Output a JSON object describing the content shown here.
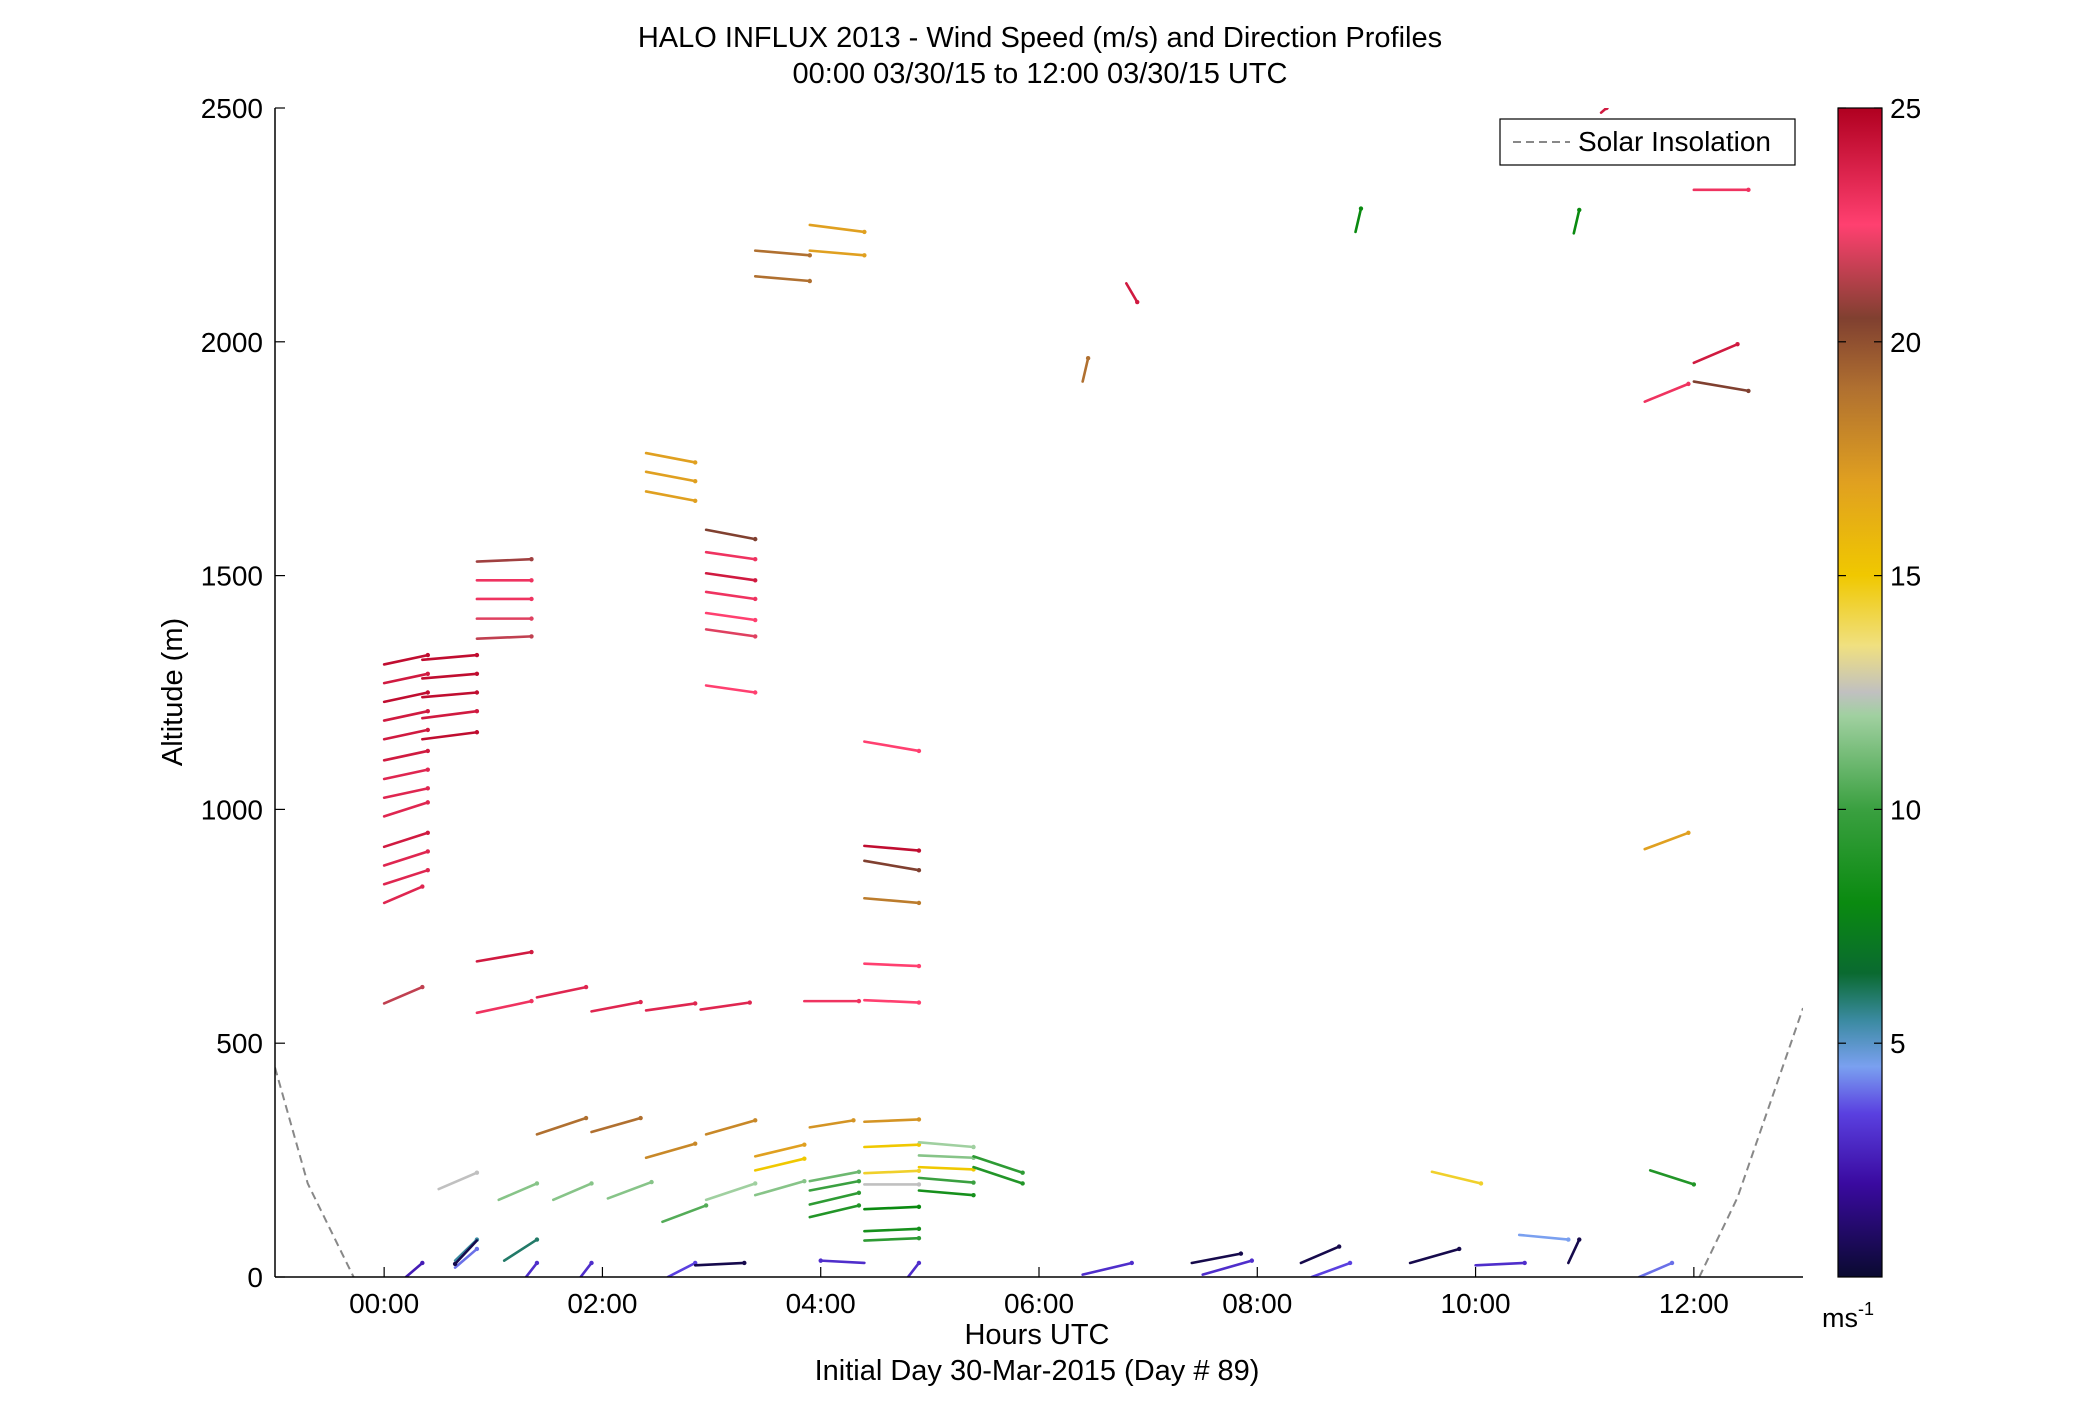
{
  "chart_data": {
    "type": "wind-profile",
    "title_line1": "HALO INFLUX 2013 - Wind Speed (m/s) and Direction Profiles",
    "title_line2": "00:00 03/30/15 to 12:00 03/30/15  UTC",
    "xlabel": "Hours UTC",
    "xlabel2": "Initial Day 30-Mar-2015 (Day # 89)",
    "ylabel": "Altitude (m)",
    "xlim": [
      -1.0,
      13.0
    ],
    "ylim": [
      0,
      2500
    ],
    "x_ticks": [
      0,
      2,
      4,
      6,
      8,
      10,
      12
    ],
    "x_tick_labels": [
      "00:00",
      "02:00",
      "04:00",
      "06:00",
      "08:00",
      "10:00",
      "12:00"
    ],
    "y_ticks": [
      0,
      500,
      1000,
      1500,
      2000,
      2500
    ],
    "y_tick_labels": [
      "0",
      "500",
      "1000",
      "1500",
      "2000",
      "2500"
    ],
    "legend": {
      "label": "Solar Insolation",
      "placement": "top-right",
      "line_color": "#888888"
    },
    "colorbar": {
      "min": 0,
      "max": 25,
      "ticks": [
        5,
        10,
        15,
        20,
        25
      ],
      "tick_labels": [
        "5",
        "10",
        "15",
        "20",
        "25"
      ],
      "unit_label": "ms",
      "unit_exp": "-1",
      "stops": [
        [
          0,
          "#0a0a30"
        ],
        [
          2,
          "#3a0aa0"
        ],
        [
          3.5,
          "#5a40e0"
        ],
        [
          4.5,
          "#7aa0f0"
        ],
        [
          5.5,
          "#3a8aa0"
        ],
        [
          6.5,
          "#0a6a30"
        ],
        [
          8,
          "#0a8a10"
        ],
        [
          10,
          "#3aa040"
        ],
        [
          12,
          "#a0d0a0"
        ],
        [
          12.5,
          "#c0c0c0"
        ],
        [
          13.5,
          "#f0e080"
        ],
        [
          15,
          "#f0c800"
        ],
        [
          17,
          "#e0a020"
        ],
        [
          19,
          "#b07030"
        ],
        [
          20.5,
          "#804030"
        ],
        [
          22.5,
          "#ff4070"
        ],
        [
          25,
          "#b00020"
        ]
      ]
    },
    "solar_insolation": [
      [
        [
          -1.0,
          448
        ],
        [
          -0.7,
          200
        ],
        [
          -0.28,
          0
        ]
      ],
      [
        [
          12.05,
          0
        ],
        [
          12.4,
          170
        ],
        [
          13.0,
          575
        ]
      ]
    ],
    "wind_barbs": [
      {
        "t": 0.0,
        "alt": 1310,
        "dx": 0.4,
        "dy": 20,
        "speed": 24.5
      },
      {
        "t": 0.0,
        "alt": 1270,
        "dx": 0.4,
        "dy": 20,
        "speed": 24.0
      },
      {
        "t": 0.0,
        "alt": 1230,
        "dx": 0.4,
        "dy": 20,
        "speed": 24.5
      },
      {
        "t": 0.0,
        "alt": 1190,
        "dx": 0.4,
        "dy": 20,
        "speed": 24.0
      },
      {
        "t": 0.0,
        "alt": 1150,
        "dx": 0.4,
        "dy": 20,
        "speed": 24.0
      },
      {
        "t": 0.0,
        "alt": 1105,
        "dx": 0.4,
        "dy": 20,
        "speed": 24.0
      },
      {
        "t": 0.0,
        "alt": 1065,
        "dx": 0.4,
        "dy": 20,
        "speed": 23.5
      },
      {
        "t": 0.0,
        "alt": 1025,
        "dx": 0.4,
        "dy": 20,
        "speed": 23.5
      },
      {
        "t": 0.0,
        "alt": 985,
        "dx": 0.4,
        "dy": 30,
        "speed": 23.5
      },
      {
        "t": 0.0,
        "alt": 920,
        "dx": 0.4,
        "dy": 30,
        "speed": 24.0
      },
      {
        "t": 0.0,
        "alt": 880,
        "dx": 0.4,
        "dy": 30,
        "speed": 23.5
      },
      {
        "t": 0.0,
        "alt": 840,
        "dx": 0.4,
        "dy": 30,
        "speed": 23.5
      },
      {
        "t": 0.0,
        "alt": 800,
        "dx": 0.35,
        "dy": 35,
        "speed": 23.5
      },
      {
        "t": 0.0,
        "alt": 585,
        "dx": 0.35,
        "dy": 35,
        "speed": 21.5
      },
      {
        "t": 0.35,
        "alt": 1320,
        "dx": 0.5,
        "dy": 10,
        "speed": 24.5
      },
      {
        "t": 0.35,
        "alt": 1280,
        "dx": 0.5,
        "dy": 10,
        "speed": 24.5
      },
      {
        "t": 0.35,
        "alt": 1240,
        "dx": 0.5,
        "dy": 10,
        "speed": 24.5
      },
      {
        "t": 0.35,
        "alt": 1195,
        "dx": 0.5,
        "dy": 15,
        "speed": 24.0
      },
      {
        "t": 0.35,
        "alt": 1150,
        "dx": 0.5,
        "dy": 15,
        "speed": 24.5
      },
      {
        "t": 0.85,
        "alt": 1530,
        "dx": 0.5,
        "dy": 5,
        "speed": 21.0
      },
      {
        "t": 0.85,
        "alt": 1490,
        "dx": 0.5,
        "dy": 0,
        "speed": 23.0
      },
      {
        "t": 0.85,
        "alt": 1450,
        "dx": 0.5,
        "dy": 0,
        "speed": 23.0
      },
      {
        "t": 0.85,
        "alt": 1408,
        "dx": 0.5,
        "dy": 0,
        "speed": 22.0
      },
      {
        "t": 0.85,
        "alt": 1365,
        "dx": 0.5,
        "dy": 5,
        "speed": 21.5
      },
      {
        "t": 0.85,
        "alt": 675,
        "dx": 0.5,
        "dy": 20,
        "speed": 24.0
      },
      {
        "t": 0.85,
        "alt": 565,
        "dx": 0.5,
        "dy": 25,
        "speed": 23.0
      },
      {
        "t": 1.4,
        "alt": 598,
        "dx": 0.45,
        "dy": 22,
        "speed": 23.5
      },
      {
        "t": 1.9,
        "alt": 568,
        "dx": 0.45,
        "dy": 20,
        "speed": 23.5
      },
      {
        "t": 2.4,
        "alt": 570,
        "dx": 0.45,
        "dy": 15,
        "speed": 23.5
      },
      {
        "t": 2.9,
        "alt": 572,
        "dx": 0.45,
        "dy": 15,
        "speed": 23.5
      },
      {
        "t": 2.95,
        "alt": 1598,
        "dx": 0.45,
        "dy": -20,
        "speed": 20.5
      },
      {
        "t": 2.95,
        "alt": 1550,
        "dx": 0.45,
        "dy": -15,
        "speed": 23.0
      },
      {
        "t": 2.95,
        "alt": 1505,
        "dx": 0.45,
        "dy": -15,
        "speed": 24.0
      },
      {
        "t": 2.95,
        "alt": 1465,
        "dx": 0.45,
        "dy": -15,
        "speed": 23.0
      },
      {
        "t": 2.95,
        "alt": 1420,
        "dx": 0.45,
        "dy": -15,
        "speed": 22.5
      },
      {
        "t": 2.95,
        "alt": 1385,
        "dx": 0.45,
        "dy": -15,
        "speed": 22.0
      },
      {
        "t": 2.95,
        "alt": 1265,
        "dx": 0.45,
        "dy": -15,
        "speed": 22.5
      },
      {
        "t": 2.4,
        "alt": 1762,
        "dx": 0.45,
        "dy": -20,
        "speed": 17.0
      },
      {
        "t": 2.4,
        "alt": 1722,
        "dx": 0.45,
        "dy": -20,
        "speed": 17.0
      },
      {
        "t": 2.4,
        "alt": 1680,
        "dx": 0.45,
        "dy": -20,
        "speed": 17.0
      },
      {
        "t": 3.4,
        "alt": 2195,
        "dx": 0.5,
        "dy": -10,
        "speed": 19.0
      },
      {
        "t": 3.4,
        "alt": 2140,
        "dx": 0.5,
        "dy": -10,
        "speed": 19.0
      },
      {
        "t": 3.9,
        "alt": 2250,
        "dx": 0.5,
        "dy": -15,
        "speed": 17.0
      },
      {
        "t": 3.9,
        "alt": 2195,
        "dx": 0.5,
        "dy": -10,
        "speed": 17.0
      },
      {
        "t": 3.85,
        "alt": 590,
        "dx": 0.5,
        "dy": 0,
        "speed": 23.0
      },
      {
        "t": 4.4,
        "alt": 1145,
        "dx": 0.5,
        "dy": -20,
        "speed": 22.5
      },
      {
        "t": 4.4,
        "alt": 922,
        "dx": 0.5,
        "dy": -10,
        "speed": 24.5
      },
      {
        "t": 4.4,
        "alt": 890,
        "dx": 0.5,
        "dy": -20,
        "speed": 20.5
      },
      {
        "t": 4.4,
        "alt": 810,
        "dx": 0.5,
        "dy": -10,
        "speed": 18.5
      },
      {
        "t": 4.4,
        "alt": 670,
        "dx": 0.5,
        "dy": -5,
        "speed": 22.5
      },
      {
        "t": 4.4,
        "alt": 592,
        "dx": 0.5,
        "dy": -5,
        "speed": 22.5
      },
      {
        "t": 6.4,
        "alt": 1915,
        "dx": 0.05,
        "dy": 50,
        "speed": 19.0
      },
      {
        "t": 6.8,
        "alt": 2125,
        "dx": 0.1,
        "dy": -40,
        "speed": 24.0
      },
      {
        "t": 8.9,
        "alt": 2235,
        "dx": 0.05,
        "dy": 50,
        "speed": 8.0
      },
      {
        "t": 10.9,
        "alt": 2232,
        "dx": 0.05,
        "dy": 50,
        "speed": 8.0
      },
      {
        "t": 11.15,
        "alt": 2490,
        "dx": 0.05,
        "dy": 10,
        "speed": 24.0
      },
      {
        "t": 12.0,
        "alt": 2325,
        "dx": 0.5,
        "dy": 0,
        "speed": 23.0
      },
      {
        "t": 12.0,
        "alt": 1955,
        "dx": 0.4,
        "dy": 40,
        "speed": 24.0
      },
      {
        "t": 11.55,
        "alt": 1872,
        "dx": 0.4,
        "dy": 38,
        "speed": 23.0
      },
      {
        "t": 12.0,
        "alt": 1915,
        "dx": 0.5,
        "dy": -20,
        "speed": 20.5
      },
      {
        "t": 11.55,
        "alt": 915,
        "dx": 0.4,
        "dy": 35,
        "speed": 17.0
      },
      {
        "t": 1.4,
        "alt": 305,
        "dx": 0.45,
        "dy": 35,
        "speed": 19.0
      },
      {
        "t": 1.9,
        "alt": 310,
        "dx": 0.45,
        "dy": 30,
        "speed": 19.0
      },
      {
        "t": 2.4,
        "alt": 255,
        "dx": 0.45,
        "dy": 30,
        "speed": 18.0
      },
      {
        "t": 2.95,
        "alt": 305,
        "dx": 0.45,
        "dy": 30,
        "speed": 18.0
      },
      {
        "t": 3.9,
        "alt": 320,
        "dx": 0.4,
        "dy": 15,
        "speed": 17.5
      },
      {
        "t": 4.4,
        "alt": 332,
        "dx": 0.5,
        "dy": 5,
        "speed": 17.5
      },
      {
        "t": 3.4,
        "alt": 258,
        "dx": 0.45,
        "dy": 25,
        "speed": 17.0
      },
      {
        "t": 3.4,
        "alt": 228,
        "dx": 0.45,
        "dy": 25,
        "speed": 15.0
      },
      {
        "t": 4.4,
        "alt": 278,
        "dx": 0.5,
        "dy": 5,
        "speed": 15.0
      },
      {
        "t": 4.4,
        "alt": 222,
        "dx": 0.5,
        "dy": 5,
        "speed": 14.5
      },
      {
        "t": 0.5,
        "alt": 188,
        "dx": 0.35,
        "dy": 35,
        "speed": 12.5
      },
      {
        "t": 1.05,
        "alt": 165,
        "dx": 0.35,
        "dy": 35,
        "speed": 11.5
      },
      {
        "t": 1.55,
        "alt": 165,
        "dx": 0.35,
        "dy": 35,
        "speed": 11.5
      },
      {
        "t": 2.05,
        "alt": 168,
        "dx": 0.4,
        "dy": 35,
        "speed": 11.5
      },
      {
        "t": 2.55,
        "alt": 118,
        "dx": 0.4,
        "dy": 35,
        "speed": 10.5
      },
      {
        "t": 2.95,
        "alt": 165,
        "dx": 0.45,
        "dy": 35,
        "speed": 12.0
      },
      {
        "t": 3.4,
        "alt": 175,
        "dx": 0.45,
        "dy": 30,
        "speed": 11.5
      },
      {
        "t": 3.9,
        "alt": 205,
        "dx": 0.45,
        "dy": 20,
        "speed": 11.0
      },
      {
        "t": 3.9,
        "alt": 185,
        "dx": 0.45,
        "dy": 20,
        "speed": 10.0
      },
      {
        "t": 3.9,
        "alt": 155,
        "dx": 0.45,
        "dy": 25,
        "speed": 9.5
      },
      {
        "t": 3.9,
        "alt": 128,
        "dx": 0.45,
        "dy": 25,
        "speed": 9.0
      },
      {
        "t": 4.4,
        "alt": 198,
        "dx": 0.5,
        "dy": 0,
        "speed": 12.5
      },
      {
        "t": 4.4,
        "alt": 145,
        "dx": 0.5,
        "dy": 5,
        "speed": 8.0
      },
      {
        "t": 4.4,
        "alt": 98,
        "dx": 0.5,
        "dy": 5,
        "speed": 8.5
      },
      {
        "t": 4.4,
        "alt": 78,
        "dx": 0.5,
        "dy": 5,
        "speed": 9.5
      },
      {
        "t": 4.9,
        "alt": 288,
        "dx": 0.5,
        "dy": -10,
        "speed": 12.0
      },
      {
        "t": 4.9,
        "alt": 260,
        "dx": 0.5,
        "dy": -5,
        "speed": 11.5
      },
      {
        "t": 4.9,
        "alt": 235,
        "dx": 0.5,
        "dy": -5,
        "speed": 15.0
      },
      {
        "t": 4.9,
        "alt": 212,
        "dx": 0.5,
        "dy": -10,
        "speed": 10.0
      },
      {
        "t": 4.9,
        "alt": 185,
        "dx": 0.5,
        "dy": -10,
        "speed": 8.5
      },
      {
        "t": 5.4,
        "alt": 258,
        "dx": 0.45,
        "dy": -35,
        "speed": 9.5
      },
      {
        "t": 5.4,
        "alt": 235,
        "dx": 0.45,
        "dy": -35,
        "speed": 9.0
      },
      {
        "t": 9.6,
        "alt": 225,
        "dx": 0.45,
        "dy": -25,
        "speed": 14.5
      },
      {
        "t": 11.6,
        "alt": 228,
        "dx": 0.4,
        "dy": -30,
        "speed": 9.0
      },
      {
        "t": 0.2,
        "alt": 0,
        "dx": 0.15,
        "dy": 30,
        "speed": 2.5
      },
      {
        "t": 0.65,
        "alt": 20,
        "dx": 0.2,
        "dy": 40,
        "speed": 4.0
      },
      {
        "t": 0.65,
        "alt": 35,
        "dx": 0.2,
        "dy": 45,
        "speed": 5.5
      },
      {
        "t": 0.85,
        "alt": 78,
        "dx": -0.2,
        "dy": -50,
        "speed": 0.5
      },
      {
        "t": 1.1,
        "alt": 35,
        "dx": 0.3,
        "dy": 45,
        "speed": 6.0
      },
      {
        "t": 1.3,
        "alt": 0,
        "dx": 0.1,
        "dy": 30,
        "speed": 3.0
      },
      {
        "t": 1.8,
        "alt": 0,
        "dx": 0.1,
        "dy": 30,
        "speed": 3.0
      },
      {
        "t": 2.6,
        "alt": 0,
        "dx": 0.25,
        "dy": 30,
        "speed": 3.5
      },
      {
        "t": 2.85,
        "alt": 25,
        "dx": 0.45,
        "dy": 5,
        "speed": 0.5
      },
      {
        "t": 4.4,
        "alt": 30,
        "dx": -0.4,
        "dy": 5,
        "speed": 3.0
      },
      {
        "t": 4.8,
        "alt": 0,
        "dx": 0.1,
        "dy": 30,
        "speed": 3.0
      },
      {
        "t": 6.4,
        "alt": 5,
        "dx": 0.45,
        "dy": 25,
        "speed": 3.0
      },
      {
        "t": 7.5,
        "alt": 5,
        "dx": 0.45,
        "dy": 30,
        "speed": 3.0
      },
      {
        "t": 7.4,
        "alt": 30,
        "dx": 0.45,
        "dy": 20,
        "speed": 0.5
      },
      {
        "t": 8.4,
        "alt": 30,
        "dx": 0.35,
        "dy": 35,
        "speed": 0.5
      },
      {
        "t": 8.5,
        "alt": 0,
        "dx": 0.35,
        "dy": 30,
        "speed": 3.5
      },
      {
        "t": 9.4,
        "alt": 30,
        "dx": 0.45,
        "dy": 30,
        "speed": 0.5
      },
      {
        "t": 10.0,
        "alt": 25,
        "dx": 0.45,
        "dy": 5,
        "speed": 3.0
      },
      {
        "t": 10.4,
        "alt": 90,
        "dx": 0.45,
        "dy": -10,
        "speed": 4.5
      },
      {
        "t": 10.85,
        "alt": 30,
        "dx": 0.1,
        "dy": 50,
        "speed": 0.5
      },
      {
        "t": 11.5,
        "alt": 0,
        "dx": 0.3,
        "dy": 30,
        "speed": 4.0
      }
    ]
  }
}
